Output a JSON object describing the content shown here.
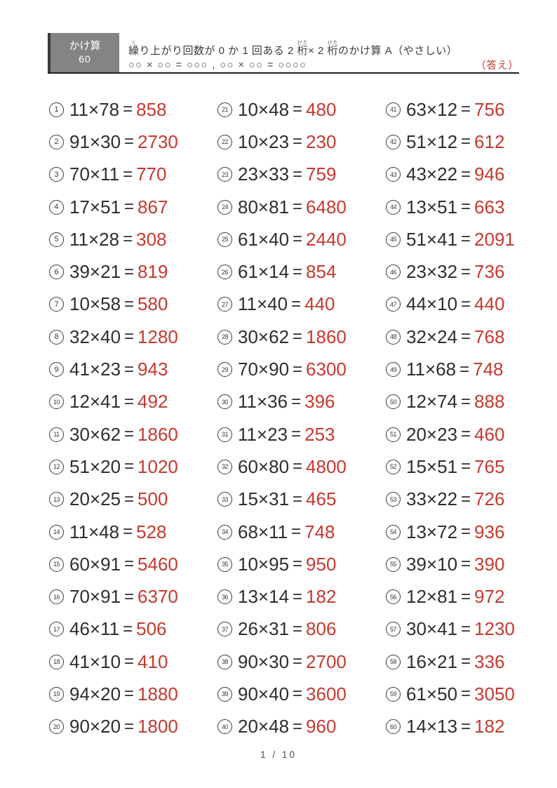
{
  "colors": {
    "answer_red": "#c5392f",
    "header_gray": "#848484",
    "text_dark": "#2e2e2e"
  },
  "header": {
    "box_title": "かけ算",
    "box_count": "60",
    "title_segments": [
      {
        "text": "繰",
        "ruby": "く"
      },
      {
        "text": "り上がり回数が 0 か 1 回ある 2 ",
        "ruby": ""
      },
      {
        "text": "桁",
        "ruby": "けた"
      },
      {
        "text": "× 2 ",
        "ruby": ""
      },
      {
        "text": "桁",
        "ruby": "けた"
      },
      {
        "text": "のかけ算 A（やさしい）",
        "ruby": ""
      }
    ],
    "pattern_line": "○○ × ○○ = ○○○ , ○○ × ○○ = ○○○○",
    "answer_label": "（答え）"
  },
  "symbols": {
    "equals": "="
  },
  "problems": [
    {
      "n": "1",
      "expr": "11×78",
      "ans": "858"
    },
    {
      "n": "2",
      "expr": "91×30",
      "ans": "2730"
    },
    {
      "n": "3",
      "expr": "70×11",
      "ans": "770"
    },
    {
      "n": "4",
      "expr": "17×51",
      "ans": "867"
    },
    {
      "n": "5",
      "expr": "11×28",
      "ans": "308"
    },
    {
      "n": "6",
      "expr": "39×21",
      "ans": "819"
    },
    {
      "n": "7",
      "expr": "10×58",
      "ans": "580"
    },
    {
      "n": "8",
      "expr": "32×40",
      "ans": "1280"
    },
    {
      "n": "9",
      "expr": "41×23",
      "ans": "943"
    },
    {
      "n": "10",
      "expr": "12×41",
      "ans": "492"
    },
    {
      "n": "11",
      "expr": "30×62",
      "ans": "1860"
    },
    {
      "n": "12",
      "expr": "51×20",
      "ans": "1020"
    },
    {
      "n": "13",
      "expr": "20×25",
      "ans": "500"
    },
    {
      "n": "14",
      "expr": "11×48",
      "ans": "528"
    },
    {
      "n": "15",
      "expr": "60×91",
      "ans": "5460"
    },
    {
      "n": "16",
      "expr": "70×91",
      "ans": "6370"
    },
    {
      "n": "17",
      "expr": "46×11",
      "ans": "506"
    },
    {
      "n": "18",
      "expr": "41×10",
      "ans": "410"
    },
    {
      "n": "19",
      "expr": "94×20",
      "ans": "1880"
    },
    {
      "n": "20",
      "expr": "90×20",
      "ans": "1800"
    },
    {
      "n": "21",
      "expr": "10×48",
      "ans": "480"
    },
    {
      "n": "22",
      "expr": "10×23",
      "ans": "230"
    },
    {
      "n": "23",
      "expr": "23×33",
      "ans": "759"
    },
    {
      "n": "24",
      "expr": "80×81",
      "ans": "6480"
    },
    {
      "n": "25",
      "expr": "61×40",
      "ans": "2440"
    },
    {
      "n": "26",
      "expr": "61×14",
      "ans": "854"
    },
    {
      "n": "27",
      "expr": "11×40",
      "ans": "440"
    },
    {
      "n": "28",
      "expr": "30×62",
      "ans": "1860"
    },
    {
      "n": "29",
      "expr": "70×90",
      "ans": "6300"
    },
    {
      "n": "30",
      "expr": "11×36",
      "ans": "396"
    },
    {
      "n": "31",
      "expr": "11×23",
      "ans": "253"
    },
    {
      "n": "32",
      "expr": "60×80",
      "ans": "4800"
    },
    {
      "n": "33",
      "expr": "15×31",
      "ans": "465"
    },
    {
      "n": "34",
      "expr": "68×11",
      "ans": "748"
    },
    {
      "n": "35",
      "expr": "10×95",
      "ans": "950"
    },
    {
      "n": "36",
      "expr": "13×14",
      "ans": "182"
    },
    {
      "n": "37",
      "expr": "26×31",
      "ans": "806"
    },
    {
      "n": "38",
      "expr": "90×30",
      "ans": "2700"
    },
    {
      "n": "39",
      "expr": "90×40",
      "ans": "3600"
    },
    {
      "n": "40",
      "expr": "20×48",
      "ans": "960"
    },
    {
      "n": "41",
      "expr": "63×12",
      "ans": "756"
    },
    {
      "n": "42",
      "expr": "51×12",
      "ans": "612"
    },
    {
      "n": "43",
      "expr": "43×22",
      "ans": "946"
    },
    {
      "n": "44",
      "expr": "13×51",
      "ans": "663"
    },
    {
      "n": "45",
      "expr": "51×41",
      "ans": "2091"
    },
    {
      "n": "46",
      "expr": "23×32",
      "ans": "736"
    },
    {
      "n": "47",
      "expr": "44×10",
      "ans": "440"
    },
    {
      "n": "48",
      "expr": "32×24",
      "ans": "768"
    },
    {
      "n": "49",
      "expr": "11×68",
      "ans": "748"
    },
    {
      "n": "50",
      "expr": "12×74",
      "ans": "888"
    },
    {
      "n": "51",
      "expr": "20×23",
      "ans": "460"
    },
    {
      "n": "52",
      "expr": "15×51",
      "ans": "765"
    },
    {
      "n": "53",
      "expr": "33×22",
      "ans": "726"
    },
    {
      "n": "54",
      "expr": "13×72",
      "ans": "936"
    },
    {
      "n": "55",
      "expr": "39×10",
      "ans": "390"
    },
    {
      "n": "56",
      "expr": "12×81",
      "ans": "972"
    },
    {
      "n": "57",
      "expr": "30×41",
      "ans": "1230"
    },
    {
      "n": "58",
      "expr": "16×21",
      "ans": "336"
    },
    {
      "n": "59",
      "expr": "61×50",
      "ans": "3050"
    },
    {
      "n": "60",
      "expr": "14×13",
      "ans": "182"
    }
  ],
  "footer": {
    "page_indicator": "1 / 10"
  }
}
